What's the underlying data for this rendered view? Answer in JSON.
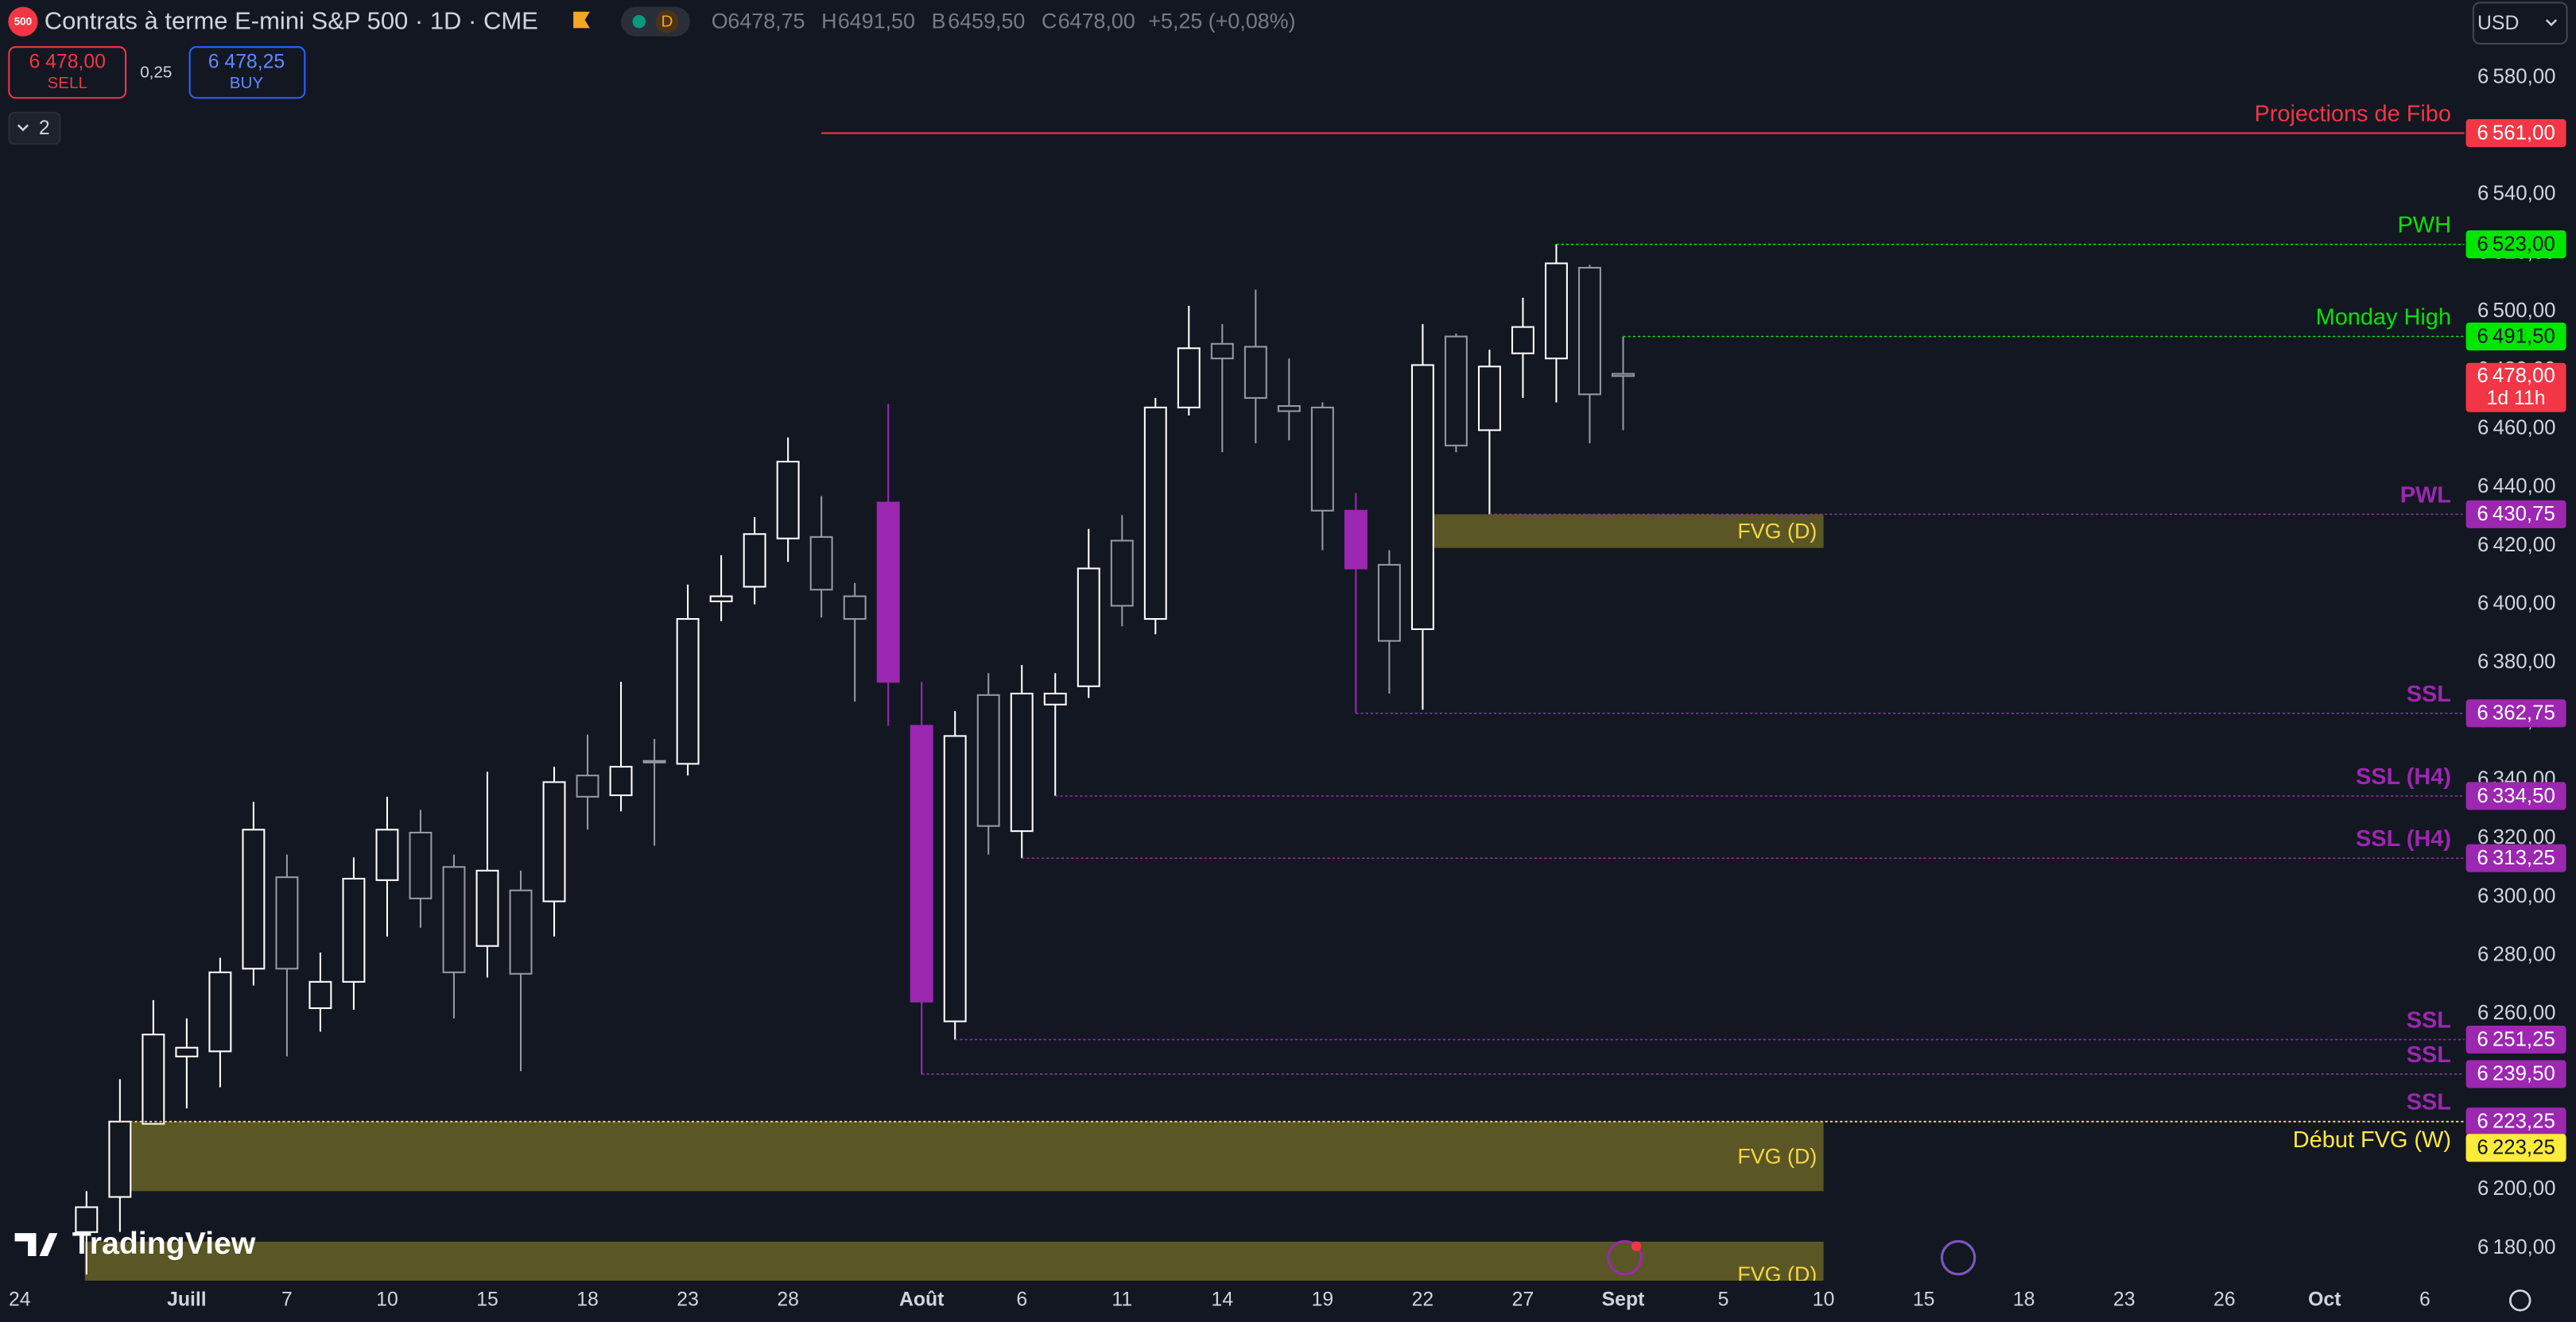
{
  "header": {
    "logo": "500",
    "title": "Contrats à terme E-mini S&P 500 · 1D · CME",
    "badge": "D",
    "ohlc": [
      {
        "key": "O",
        "value": "6478,75"
      },
      {
        "key": "H",
        "value": "6491,50"
      },
      {
        "key": "B",
        "value": "6459,50"
      },
      {
        "key": "C",
        "value": "6478,00"
      }
    ],
    "change": "+5,25 (+0,08%)",
    "sell_price": "6 478,00",
    "sell": "SELL",
    "spread": "0,25",
    "buy_price": "6 478,25",
    "buy": "BUY",
    "layouts": "2",
    "currency": "USD",
    "brand": "TradingView"
  },
  "chart_data": {
    "type": "candlestick",
    "categories": [
      "24",
      null,
      null,
      null,
      null,
      "Juill",
      null,
      null,
      "7",
      null,
      null,
      "10",
      null,
      null,
      "15",
      null,
      null,
      "18",
      null,
      null,
      "23",
      null,
      null,
      "28",
      null,
      null,
      null,
      "Août",
      null,
      null,
      "6",
      null,
      null,
      "11",
      null,
      null,
      "14",
      null,
      null,
      "19",
      null,
      null,
      "22",
      null,
      null,
      "27",
      null,
      null,
      "Sept",
      null,
      null,
      "5",
      null,
      null,
      "10",
      null,
      null,
      "15",
      null,
      null,
      "18",
      null,
      null,
      "23",
      null,
      null,
      "26",
      null,
      null,
      "Oct",
      null,
      null,
      "6"
    ],
    "open": [
      null,
      null,
      6185.5,
      6197.5,
      6222.5,
      6245.5,
      6247.25,
      6275.5,
      6306.75,
      6262,
      6271,
      6305.75,
      6322,
      6310.25,
      6283.25,
      6302.25,
      6298.5,
      6341.5,
      6334.75,
      6346.5,
      6345.5,
      6401,
      6406,
      6422.5,
      6423,
      6402.75,
      6434.75,
      6358.5,
      6257.5,
      6369,
      6322.5,
      6365.75,
      6372,
      6421.75,
      6395,
      6467.25,
      6489,
      6488,
      6467.75,
      6467.25,
      6432,
      6413.5,
      6391.5,
      6491.5,
      6459.5,
      6485.75,
      6484,
      6515,
      6478.75,
      null,
      null,
      null,
      null,
      null,
      null,
      null,
      null,
      null,
      null,
      null,
      null,
      null,
      null,
      null,
      null,
      null,
      null,
      null,
      null,
      null,
      null,
      null,
      null
    ],
    "high": [
      null,
      null,
      6199.5,
      6237.75,
      6264.75,
      6258.5,
      6279.25,
      6332.5,
      6314.5,
      6281,
      6313.5,
      6334.25,
      6329.75,
      6314.5,
      6342.75,
      6309,
      6344.5,
      6355.5,
      6373.5,
      6354,
      6406.75,
      6416.75,
      6429.75,
      6457,
      6437,
      6407.25,
      6468.5,
      6373.5,
      6363.5,
      6376.5,
      6379.25,
      6376.5,
      6425.75,
      6430.5,
      6470.5,
      6502,
      6495.75,
      6507.5,
      6484,
      6469,
      6438,
      6418.5,
      6495.75,
      6492.5,
      6487,
      6504.75,
      6523,
      6516,
      6491.5,
      null,
      null,
      null,
      null,
      null,
      null,
      null,
      null,
      null,
      null,
      null,
      null,
      null,
      null,
      null,
      null,
      null,
      null,
      null,
      null,
      null,
      null,
      null,
      null
    ],
    "low": [
      null,
      null,
      6171,
      6185.5,
      6222.5,
      6227.75,
      6235,
      6269.75,
      6245.5,
      6254,
      6261.5,
      6286.5,
      6289.5,
      6258.5,
      6272.5,
      6240.5,
      6286.5,
      6323,
      6329.25,
      6317.5,
      6341.5,
      6394.25,
      6400,
      6414.5,
      6395.5,
      6366.75,
      6358.5,
      6239.5,
      6251.25,
      6314.5,
      6313.25,
      6334.5,
      6368,
      6392.5,
      6389.75,
      6464.5,
      6452,
      6455,
      6456,
      6418.5,
      6362.75,
      6369.5,
      6364,
      6452,
      6430.75,
      6470.5,
      6469,
      6455,
      6459.5,
      null,
      null,
      null,
      null,
      null,
      null,
      null,
      null,
      null,
      null,
      null,
      null,
      null,
      null,
      null,
      null,
      null,
      null,
      null,
      null,
      null,
      null,
      null,
      null
    ],
    "close": [
      null,
      null,
      6194,
      6223.25,
      6253,
      6248.5,
      6274.25,
      6323,
      6275.5,
      6271,
      6306.25,
      6323,
      6299.5,
      6274.25,
      6309,
      6273.75,
      6339.25,
      6334.25,
      6344.5,
      6346,
      6395,
      6402.75,
      6424,
      6448.75,
      6405,
      6395,
      6373.5,
      6264.25,
      6355,
      6324.25,
      6369.5,
      6369.5,
      6412.25,
      6399.5,
      6467.25,
      6487.5,
      6484,
      6470.5,
      6466,
      6432,
      6412.25,
      6387.5,
      6481.75,
      6454.25,
      6481.25,
      6494.75,
      6516.5,
      6471.75,
      6478,
      null,
      null,
      null,
      null,
      null,
      null,
      null,
      null,
      null,
      null,
      null,
      null,
      null,
      null,
      null,
      null,
      null,
      null,
      null,
      null,
      null,
      null,
      null,
      null
    ],
    "up_color": "#ffffff",
    "down_color": "#9598a1",
    "highlight": {
      "color": "#9c27b0",
      "indices": [
        26,
        27,
        40
      ]
    },
    "ylim": [
      6170,
      6606.4
    ],
    "yticks": [
      {
        "value": 6180,
        "label": "6 180,00"
      },
      {
        "value": 6200,
        "label": "6 200,00"
      },
      {
        "value": 6220,
        "label": "6 220,00"
      },
      {
        "value": 6240,
        "label": "6 240,00"
      },
      {
        "value": 6260,
        "label": "6 260,00"
      },
      {
        "value": 6280,
        "label": "6 280,00"
      },
      {
        "value": 6300,
        "label": "6 300,00"
      },
      {
        "value": 6320,
        "label": "6 320,00"
      },
      {
        "value": 6340,
        "label": "6 340,00"
      },
      {
        "value": 6360,
        "label": "6 360,00"
      },
      {
        "value": 6380,
        "label": "6 380,00"
      },
      {
        "value": 6400,
        "label": "6 400,00"
      },
      {
        "value": 6420,
        "label": "6 420,00"
      },
      {
        "value": 6440,
        "label": "6 440,00"
      },
      {
        "value": 6460,
        "label": "6 460,00"
      },
      {
        "value": 6480,
        "label": "6 480,00"
      },
      {
        "value": 6500,
        "label": "6 500,00"
      },
      {
        "value": 6520,
        "label": "6 520,00"
      },
      {
        "value": 6540,
        "label": "6 540,00"
      },
      {
        "value": 6560,
        "label": "6 560,00"
      },
      {
        "value": 6580,
        "label": "6 580,00"
      }
    ],
    "grid": false,
    "levels": [
      {
        "label": "Projections de Fibo",
        "value": 6561,
        "value_label": "6 561,00",
        "color": "#f23645",
        "style": "solid"
      },
      {
        "label": "PWH",
        "value": 6523,
        "value_label": "6 523,00",
        "color": "#00e600",
        "style": "dotted"
      },
      {
        "label": "Monday High",
        "value": 6491.5,
        "value_label": "6 491,50",
        "color": "#00e600",
        "style": "dotted"
      },
      {
        "label": "PWL",
        "value": 6430.75,
        "value_label": "6 430,75",
        "color": "#9c27b0",
        "style": "dotted",
        "bold": true
      },
      {
        "label": "SSL",
        "value": 6362.75,
        "value_label": "6 362,75",
        "color": "#9c27b0",
        "style": "dotted",
        "bold": true
      },
      {
        "label": "SSL (H4)",
        "value": 6334.5,
        "value_label": "6 334,50",
        "color": "#9c27b0",
        "style": "dotted",
        "bold": true
      },
      {
        "label": "SSL (H4)",
        "value": 6313.25,
        "value_label": "6 313,25",
        "color": "#9c27b0",
        "style": "dotted",
        "bold": true
      },
      {
        "label": "SSL",
        "value": 6251.25,
        "value_label": "6 251,25",
        "color": "#9c27b0",
        "style": "dotted",
        "bold": true
      },
      {
        "label": "SSL",
        "value": 6239.5,
        "value_label": "6 239,50",
        "color": "#9c27b0",
        "style": "dotted",
        "bold": true
      },
      {
        "label": "SSL",
        "value": 6223.25,
        "value_label": "6 223,25",
        "color": "#9c27b0",
        "style": "dotted",
        "bold": true
      },
      {
        "label": "Début FVG (W)",
        "value": 6223.25,
        "value_label": "6 223,25",
        "color": "#ffeb3b",
        "style": "dotted"
      }
    ],
    "zones": [
      {
        "label": "FVG (D)",
        "top": 6430.75,
        "bottom": 6419.25,
        "color": "#5e5a26",
        "text_color": "#f5d742"
      },
      {
        "label": "FVG (D)",
        "top": 6223.25,
        "bottom": 6199.5,
        "color": "#5e5a26",
        "text_color": "#f5d742"
      },
      {
        "label": "FVG (D)",
        "top": 6182.25,
        "bottom": 6160,
        "color": "#5e5a26",
        "text_color": "#f5d742"
      }
    ],
    "last": {
      "value": 6478,
      "value_label": "6 478,00",
      "countdown": "1d 11h",
      "color": "#f23645"
    }
  }
}
